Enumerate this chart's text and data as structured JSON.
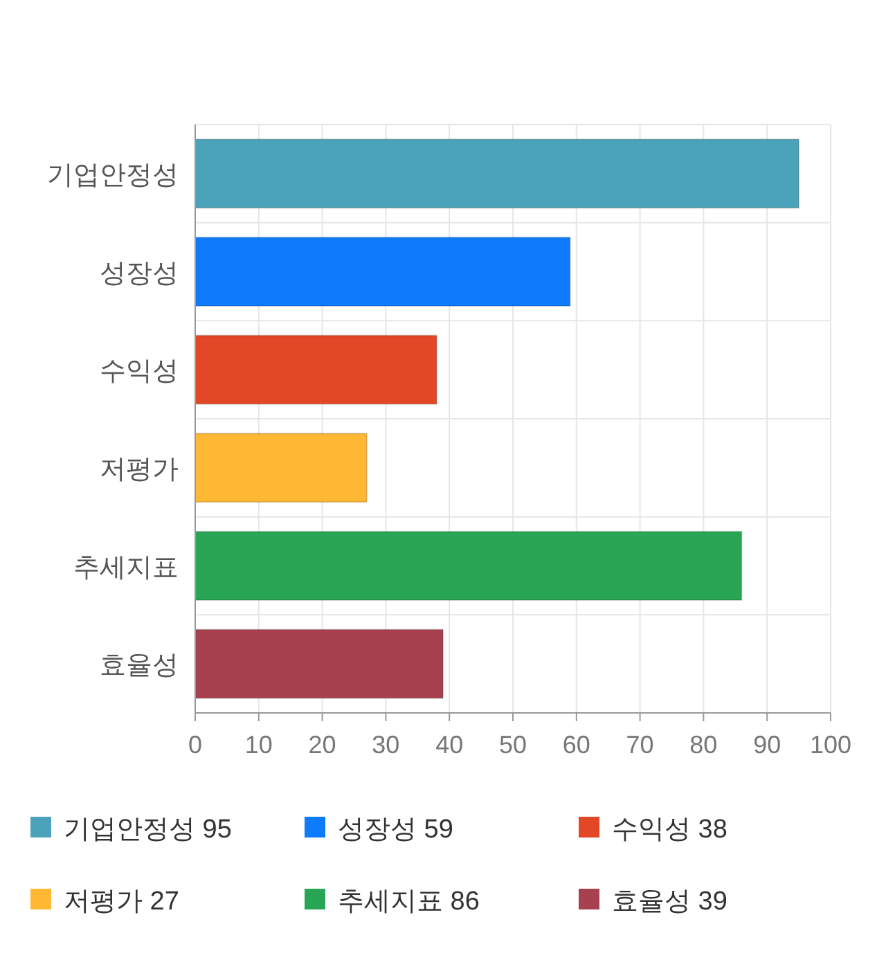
{
  "chart_data": {
    "type": "bar",
    "orientation": "horizontal",
    "categories": [
      "기업안정성",
      "성장성",
      "수익성",
      "저평가",
      "추세지표",
      "효율성"
    ],
    "values": [
      95,
      59,
      38,
      27,
      86,
      39
    ],
    "colors": [
      "#4aa3bb",
      "#0d7bfb",
      "#e24726",
      "#ffb833",
      "#29a655",
      "#a8414f"
    ],
    "xlim": [
      0,
      100
    ],
    "xticks": [
      0,
      10,
      20,
      30,
      40,
      50,
      60,
      70,
      80,
      90,
      100
    ],
    "grid": true,
    "annotations": [
      "기업안정성 95",
      "성장성 59",
      "수익성 38",
      "저평가 27",
      "추세지표 86",
      "효율성 39"
    ]
  }
}
